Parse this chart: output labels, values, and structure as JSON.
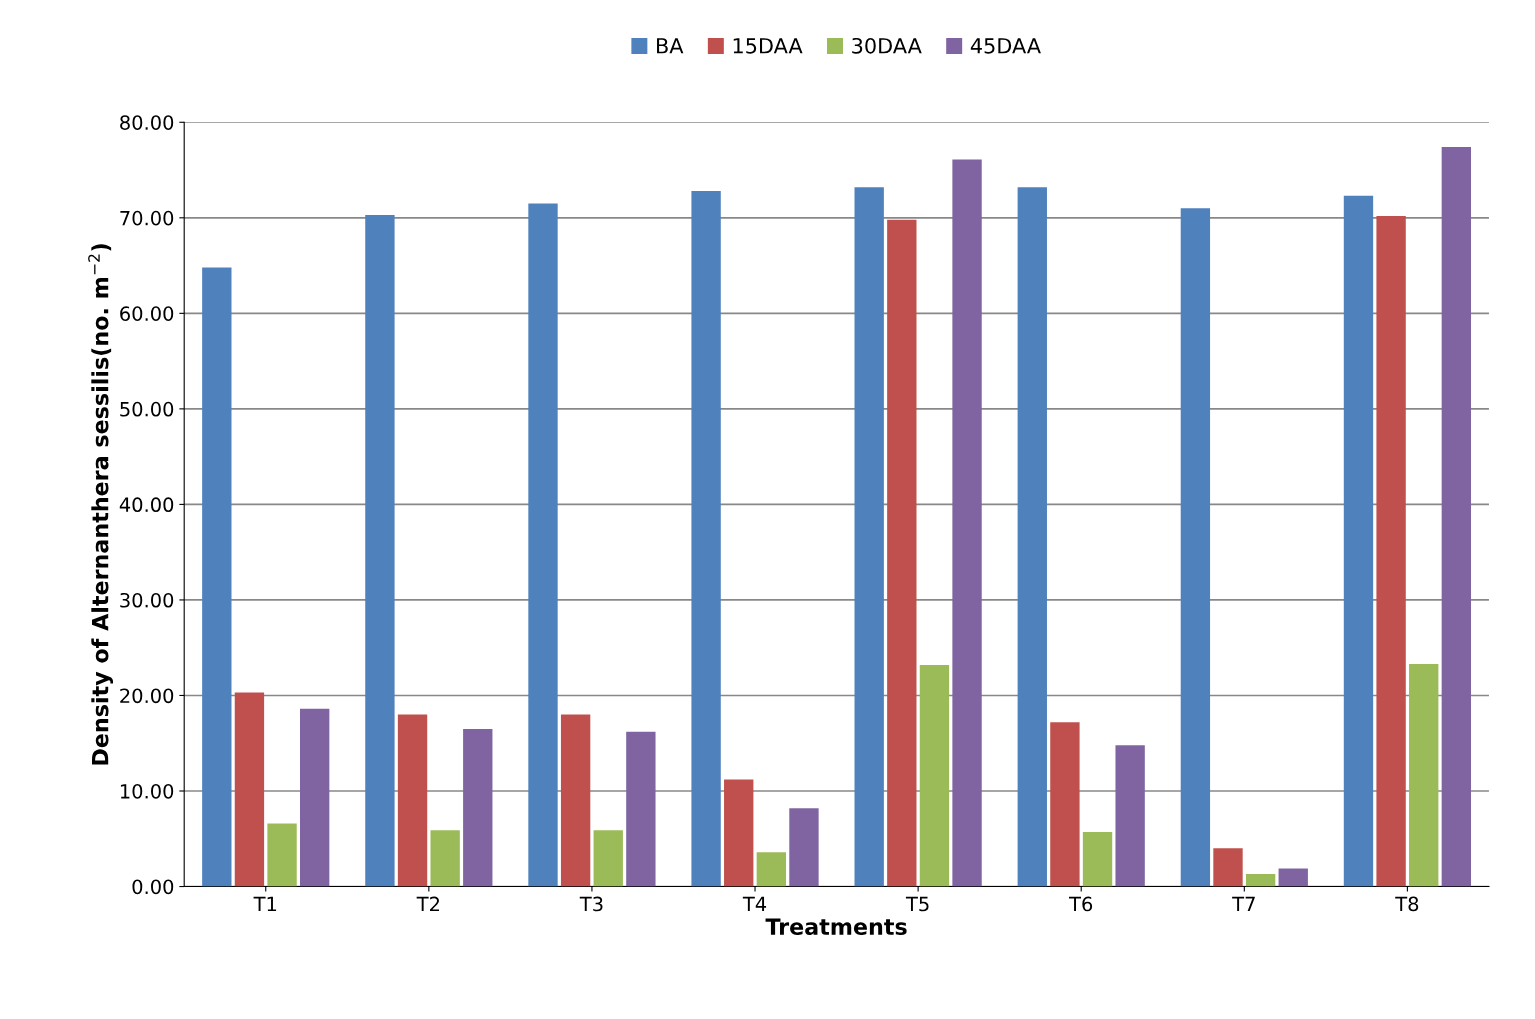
{
  "chart_data": {
    "type": "bar",
    "xlabel": "Treatments",
    "ylabel": "Density of Alternanthera sessilis(no. m$^{−2}$)",
    "categories": [
      "T1",
      "T2",
      "T3",
      "T4",
      "T5",
      "T6",
      "T7",
      "T8"
    ],
    "series": [
      {
        "name": "BA",
        "color": "#4f81bd",
        "values": [
          64.8,
          70.3,
          71.5,
          72.8,
          73.2,
          73.2,
          71.0,
          72.3
        ]
      },
      {
        "name": "15DAA",
        "color": "#c0504d",
        "values": [
          20.3,
          18.0,
          18.0,
          11.2,
          69.8,
          17.2,
          4.0,
          70.2
        ]
      },
      {
        "name": "30DAA",
        "color": "#9bbb59",
        "values": [
          6.6,
          5.9,
          5.9,
          3.6,
          23.2,
          5.7,
          1.3,
          23.3
        ]
      },
      {
        "name": "45DAA",
        "color": "#8064a2",
        "values": [
          18.6,
          16.5,
          16.2,
          8.2,
          76.1,
          14.8,
          1.9,
          77.4
        ]
      }
    ],
    "ylim": [
      0,
      80
    ],
    "yticks": [
      {
        "value": 0,
        "label": "0.00"
      },
      {
        "value": 10,
        "label": "10.00"
      },
      {
        "value": 20,
        "label": "20.00"
      },
      {
        "value": 30,
        "label": "30.00"
      },
      {
        "value": 40,
        "label": "40.00"
      },
      {
        "value": 50,
        "label": "50.00"
      },
      {
        "value": 60,
        "label": "60.00"
      },
      {
        "value": 70,
        "label": "70.00"
      },
      {
        "value": 80,
        "label": "80.00"
      }
    ],
    "grid": "y",
    "legend": "top"
  }
}
